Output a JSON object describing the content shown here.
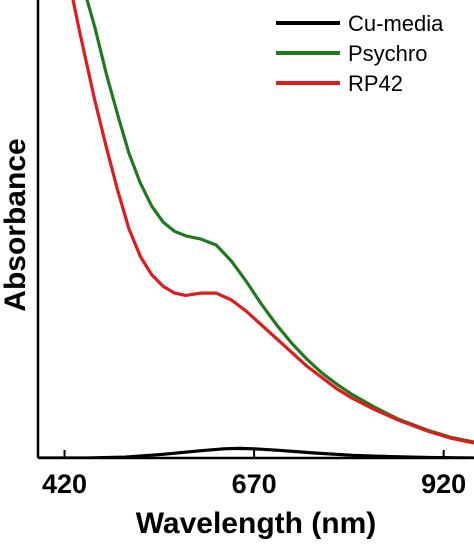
{
  "chart_data": {
    "type": "line",
    "xlabel": "Wavelength (nm)",
    "ylabel": "Absorbance",
    "xlim": [
      385,
      960
    ],
    "ylim": [
      0,
      1.0
    ],
    "xticks": [
      420,
      670,
      920
    ],
    "xtick_labels": [
      "420",
      "670",
      "920"
    ],
    "yticks_shown": false,
    "legend_position": "top-right",
    "series": [
      {
        "name": "Cu-media",
        "color": "#000000",
        "x": [
          385,
          450,
          500,
          550,
          600,
          630,
          650,
          670,
          700,
          750,
          800,
          850,
          900,
          960
        ],
        "y": [
          0.0,
          0.0,
          0.002,
          0.008,
          0.016,
          0.02,
          0.021,
          0.02,
          0.017,
          0.011,
          0.006,
          0.003,
          0.001,
          0.0
        ]
      },
      {
        "name": "Psychro",
        "color": "#1f7a1f",
        "x": [
          448,
          460,
          475,
          490,
          505,
          520,
          535,
          550,
          565,
          580,
          600,
          620,
          640,
          660,
          680,
          700,
          720,
          740,
          760,
          780,
          800,
          830,
          860,
          900,
          930,
          960
        ],
        "y": [
          1.01,
          0.94,
          0.84,
          0.75,
          0.665,
          0.6,
          0.55,
          0.515,
          0.495,
          0.485,
          0.478,
          0.465,
          0.43,
          0.385,
          0.335,
          0.29,
          0.25,
          0.215,
          0.185,
          0.16,
          0.138,
          0.11,
          0.085,
          0.06,
          0.045,
          0.035
        ]
      },
      {
        "name": "RP42",
        "color": "#e31a1c",
        "x": [
          430,
          440,
          450,
          460,
          475,
          490,
          505,
          520,
          535,
          550,
          565,
          580,
          600,
          620,
          640,
          660,
          680,
          700,
          720,
          740,
          760,
          780,
          800,
          830,
          860,
          900,
          930,
          960
        ],
        "y": [
          1.01,
          0.93,
          0.855,
          0.78,
          0.68,
          0.585,
          0.5,
          0.44,
          0.4,
          0.375,
          0.36,
          0.355,
          0.36,
          0.36,
          0.345,
          0.32,
          0.29,
          0.26,
          0.23,
          0.2,
          0.175,
          0.15,
          0.13,
          0.105,
          0.083,
          0.058,
          0.043,
          0.033
        ]
      }
    ]
  }
}
